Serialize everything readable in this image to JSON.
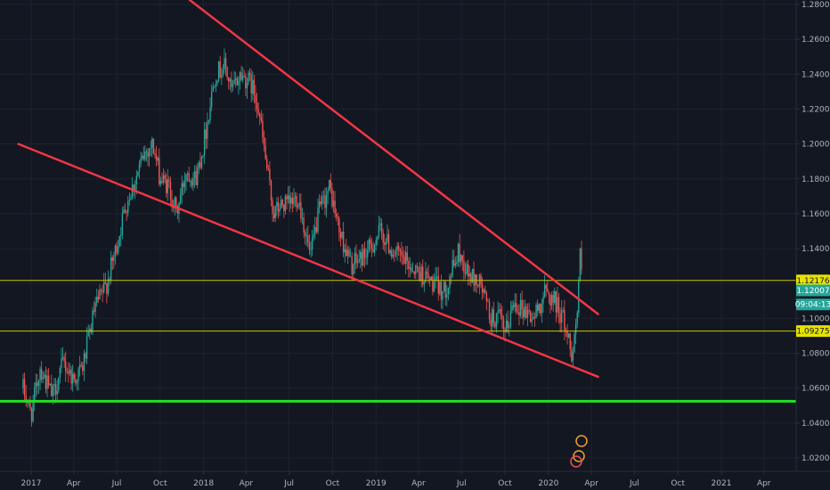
{
  "chart_data": {
    "type": "candlestick",
    "title": "",
    "xlabel": "",
    "ylabel": "",
    "ylim": [
      1.01,
      1.28
    ],
    "x_tick_labels": [
      "2017",
      "Apr",
      "Jul",
      "Oct",
      "2018",
      "Apr",
      "Jul",
      "Oct",
      "2019",
      "Apr",
      "Jul",
      "Oct",
      "2020",
      "Apr",
      "Jul",
      "Oct",
      "2021",
      "Apr"
    ],
    "y_ticks": [
      1.28,
      1.26,
      1.24,
      1.22,
      1.2,
      1.18,
      1.16,
      1.14,
      1.12,
      1.1,
      1.08,
      1.06,
      1.04,
      1.02
    ],
    "y_tick_labels": [
      "1.28000",
      "1.26000",
      "1.24000",
      "1.22000",
      "1.20000",
      "1.18000",
      "1.16000",
      "1.14000",
      "1.12000",
      "1.10000",
      "1.08000",
      "1.06000",
      "1.04000",
      "1.02000"
    ],
    "price_path": [
      [
        "2016-12-15",
        1.06
      ],
      [
        "2017-01-01",
        1.045
      ],
      [
        "2017-01-20",
        1.072
      ],
      [
        "2017-02-15",
        1.055
      ],
      [
        "2017-03-10",
        1.075
      ],
      [
        "2017-04-01",
        1.065
      ],
      [
        "2017-04-20",
        1.072
      ],
      [
        "2017-05-15",
        1.105
      ],
      [
        "2017-06-10",
        1.12
      ],
      [
        "2017-06-30",
        1.14
      ],
      [
        "2017-07-20",
        1.165
      ],
      [
        "2017-08-10",
        1.18
      ],
      [
        "2017-08-30",
        1.195
      ],
      [
        "2017-09-15",
        1.2
      ],
      [
        "2017-10-01",
        1.18
      ],
      [
        "2017-10-20",
        1.175
      ],
      [
        "2017-11-05",
        1.16
      ],
      [
        "2017-11-25",
        1.185
      ],
      [
        "2017-12-15",
        1.18
      ],
      [
        "2018-01-01",
        1.2
      ],
      [
        "2018-01-25",
        1.24
      ],
      [
        "2018-02-15",
        1.245
      ],
      [
        "2018-03-01",
        1.23
      ],
      [
        "2018-03-20",
        1.24
      ],
      [
        "2018-04-10",
        1.235
      ],
      [
        "2018-04-25",
        1.225
      ],
      [
        "2018-05-10",
        1.195
      ],
      [
        "2018-05-29",
        1.16
      ],
      [
        "2018-06-15",
        1.165
      ],
      [
        "2018-07-01",
        1.165
      ],
      [
        "2018-07-20",
        1.17
      ],
      [
        "2018-08-15",
        1.135
      ],
      [
        "2018-09-01",
        1.16
      ],
      [
        "2018-09-25",
        1.175
      ],
      [
        "2018-10-15",
        1.15
      ],
      [
        "2018-11-10",
        1.13
      ],
      [
        "2018-12-01",
        1.135
      ],
      [
        "2018-12-20",
        1.14
      ],
      [
        "2019-01-10",
        1.15
      ],
      [
        "2019-02-01",
        1.14
      ],
      [
        "2019-02-20",
        1.135
      ],
      [
        "2019-03-15",
        1.13
      ],
      [
        "2019-04-10",
        1.125
      ],
      [
        "2019-05-01",
        1.12
      ],
      [
        "2019-05-25",
        1.115
      ],
      [
        "2019-06-25",
        1.138
      ],
      [
        "2019-07-15",
        1.125
      ],
      [
        "2019-08-10",
        1.12
      ],
      [
        "2019-09-01",
        1.1
      ],
      [
        "2019-09-20",
        1.1
      ],
      [
        "2019-10-01",
        1.09
      ],
      [
        "2019-10-20",
        1.11
      ],
      [
        "2019-11-10",
        1.105
      ],
      [
        "2019-12-01",
        1.1
      ],
      [
        "2019-12-25",
        1.115
      ],
      [
        "2020-01-15",
        1.11
      ],
      [
        "2020-02-01",
        1.1
      ],
      [
        "2020-02-20",
        1.08
      ],
      [
        "2020-03-01",
        1.1
      ],
      [
        "2020-03-09",
        1.14
      ],
      [
        "2020-03-12",
        1.12
      ]
    ],
    "trendlines": [
      {
        "name": "upper",
        "from": [
          "2017-09-10",
          1.3
        ],
        "to": [
          "2020-04-15",
          1.1025
        ],
        "color": "#f23645"
      },
      {
        "name": "lower",
        "from": [
          "2016-12-05",
          1.2
        ],
        "to": [
          "2020-04-15",
          1.0665
        ],
        "color": "#f23645"
      }
    ],
    "horizontal_lines": [
      {
        "value": 1.12176,
        "color": "#c8c800"
      },
      {
        "value": 1.09275,
        "color": "#c8c800"
      },
      {
        "value": 1.0525,
        "color": "#22e022"
      }
    ],
    "price_tags": [
      {
        "label": "1.12176",
        "value": 1.12176,
        "bg": "#e6e200",
        "fg": "#131722"
      },
      {
        "label": "1.12007",
        "value": 1.116,
        "bg": "#26a69a",
        "fg": "#ffffff"
      },
      {
        "label": "09:04:13",
        "value": 1.108,
        "bg": "#26a69a",
        "fg": "#ffffff"
      },
      {
        "label": "1.09275",
        "value": 1.09275,
        "bg": "#e6e200",
        "fg": "#131722"
      }
    ],
    "colors": {
      "background": "#131722",
      "grid": "#1e222d",
      "up": "#26a69a",
      "down": "#ef5350",
      "axis_text": "#b2b5be",
      "axis_line": "#2a2e39"
    },
    "grid": true
  }
}
